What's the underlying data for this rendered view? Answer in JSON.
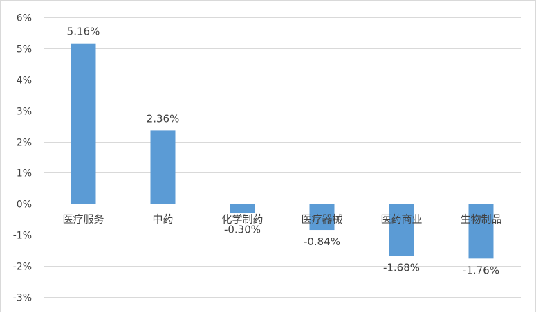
{
  "chart_data": {
    "type": "bar",
    "title": "",
    "xlabel": "",
    "ylabel": "",
    "categories": [
      "医疗服务",
      "中药",
      "化学制药",
      "医疗器械",
      "医药商业",
      "生物制品"
    ],
    "values": [
      5.16,
      2.36,
      -0.3,
      -0.84,
      -1.68,
      -1.76
    ],
    "data_labels": [
      "5.16%",
      "2.36%",
      "-0.30%",
      "-0.84%",
      "-1.68%",
      "-1.76%"
    ],
    "ylim": [
      -3,
      6
    ],
    "yticks": [
      6,
      5,
      4,
      3,
      2,
      1,
      0,
      -1,
      -2,
      -3
    ],
    "ytick_labels": [
      "6%",
      "5%",
      "4%",
      "3%",
      "2%",
      "1%",
      "0%",
      "-1%",
      "-2%",
      "-3%"
    ],
    "grid": true,
    "legend": "none",
    "bar_color": "#5b9bd5",
    "grid_color": "#d9d9d9"
  }
}
